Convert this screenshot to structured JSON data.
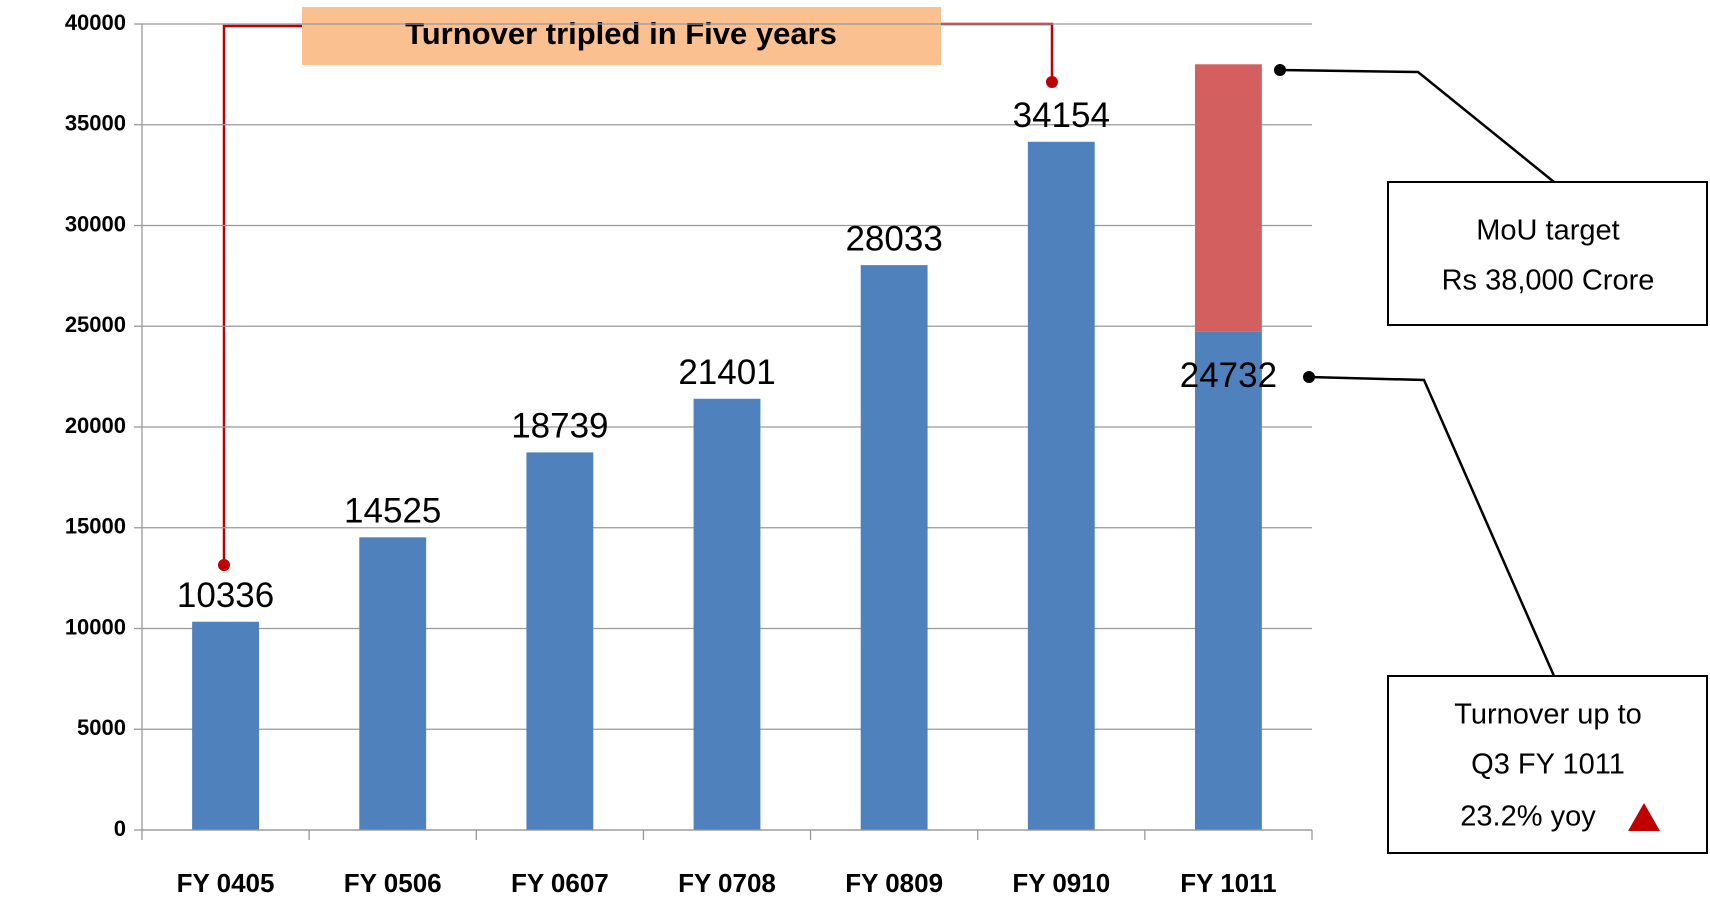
{
  "chart_data": {
    "type": "bar",
    "stacked": true,
    "categories": [
      "FY 0405",
      "FY 0506",
      "FY 0607",
      "FY 0708",
      "FY 0809",
      "FY 0910",
      "FY 1011"
    ],
    "series": [
      {
        "color": "#4f81bd",
        "values": [
          10336,
          14525,
          18739,
          21401,
          28033,
          34154,
          24732
        ]
      },
      {
        "color": "#d45f5f",
        "values": [
          null,
          null,
          null,
          null,
          null,
          null,
          13268
        ]
      }
    ],
    "ylim": [
      0,
      40000
    ],
    "yticks": [
      0,
      5000,
      10000,
      15000,
      20000,
      25000,
      30000,
      35000,
      40000
    ],
    "grid": true,
    "annotations": {
      "headline": "Turnover tripled in Five years",
      "target": [
        "MoU target",
        "Rs 38,000 Crore"
      ],
      "progress": [
        "Turnover up to",
        "Q3 FY 1011",
        "23.2% yoy"
      ]
    }
  }
}
